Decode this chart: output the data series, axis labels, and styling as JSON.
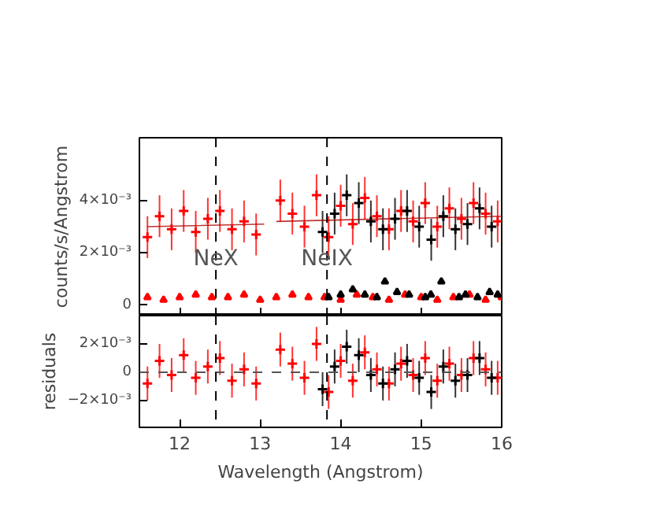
{
  "chart_data": [
    {
      "type": "scatter",
      "ylabel": "counts/s/Angstrom",
      "xlim": [
        11.5,
        16
      ],
      "ylim": [
        -0.0004,
        0.0064
      ],
      "xticks": [
        12,
        13,
        14,
        15,
        16
      ],
      "yticks": [
        {
          "value": 0,
          "label": "0"
        },
        {
          "value": 0.002,
          "label": "2×10⁻³"
        },
        {
          "value": 0.004,
          "label": "4×10⁻³"
        }
      ],
      "tick_labels": "y",
      "grid": false,
      "marker": "cross",
      "annotations": [
        {
          "text": "NeX",
          "x": 12.45,
          "y": 0.0013
        },
        {
          "text": "NeIX",
          "x": 13.83,
          "y": 0.0013
        }
      ],
      "ref_lines": [
        {
          "axis": "x",
          "value": 12.45,
          "label": null,
          "color": "#000000",
          "line_style": "dashed"
        },
        {
          "axis": "x",
          "value": 13.83,
          "label": null,
          "color": "#000000",
          "line_style": "dashed"
        }
      ],
      "series": [
        {
          "color": "#ff0000",
          "x": [
            11.6,
            11.75,
            11.9,
            12.05,
            12.2,
            12.35,
            12.5,
            12.65,
            12.8,
            12.95,
            13.25,
            13.4,
            13.55,
            13.7,
            13.85,
            14.0,
            14.15,
            14.3,
            14.45,
            14.6,
            14.75,
            14.9,
            15.05,
            15.2,
            15.35,
            15.5,
            15.65,
            15.8,
            15.95
          ],
          "values": [
            0.0026,
            0.0034,
            0.0029,
            0.0036,
            0.0028,
            0.0033,
            0.0036,
            0.0029,
            0.0032,
            0.0027,
            0.004,
            0.0035,
            0.003,
            0.0042,
            0.0026,
            0.0038,
            0.0031,
            0.0041,
            0.0034,
            0.0029,
            0.0036,
            0.0032,
            0.0039,
            0.003,
            0.0037,
            0.0033,
            0.0039,
            0.0035,
            0.0032
          ],
          "errors": [
            0.0008,
            0.0008,
            0.0008,
            0.0008,
            0.0008,
            0.0008,
            0.0008,
            0.0008,
            0.0008,
            0.0008,
            0.0008,
            0.0008,
            0.0008,
            0.0008,
            0.0008,
            0.0008,
            0.0008,
            0.0008,
            0.0008,
            0.0008,
            0.0008,
            0.0008,
            0.0008,
            0.0008,
            0.0008,
            0.0008,
            0.0008,
            0.0008,
            0.0008
          ]
        },
        {
          "color": "#000000",
          "x": [
            13.775,
            13.925,
            14.075,
            14.225,
            14.375,
            14.525,
            14.675,
            14.825,
            14.975,
            15.125,
            15.275,
            15.425,
            15.575,
            15.725,
            15.875
          ],
          "values": [
            0.0028,
            0.0035,
            0.0042,
            0.0039,
            0.0032,
            0.0029,
            0.0033,
            0.0036,
            0.003,
            0.0025,
            0.0034,
            0.0029,
            0.0031,
            0.0037,
            0.003
          ],
          "errors": [
            0.0008,
            0.0008,
            0.0008,
            0.0008,
            0.0008,
            0.0008,
            0.0008,
            0.0008,
            0.0008,
            0.0008,
            0.0008,
            0.0008,
            0.0008,
            0.0008,
            0.0008
          ]
        },
        {
          "type": "line",
          "color": "#b00000",
          "marker": "none",
          "x": [
            11.6,
            13.05,
            13.12,
            13.2,
            16
          ],
          "values": [
            0.003,
            0.0031,
            null,
            0.0032,
            0.0034
          ]
        },
        {
          "color": "#ff0000",
          "marker": "triangle",
          "x": [
            11.6,
            11.8,
            12.0,
            12.2,
            12.4,
            12.6,
            12.8,
            13.0,
            13.2,
            13.4,
            13.6,
            13.8,
            14.0,
            14.2,
            14.4,
            14.6,
            14.8,
            15.0,
            15.2,
            15.4,
            15.6,
            15.8,
            16.0
          ],
          "values": [
            0.0003,
            0.0002,
            0.0003,
            0.0004,
            0.0003,
            0.0003,
            0.0004,
            0.0002,
            0.0003,
            0.0004,
            0.0003,
            0.0003,
            0.0002,
            0.0004,
            0.0003,
            0.0002,
            0.0004,
            0.0003,
            0.0002,
            0.0003,
            0.0004,
            0.0002,
            0.0003
          ]
        },
        {
          "color": "#000000",
          "marker": "triangle",
          "x": [
            13.85,
            14.0,
            14.15,
            14.3,
            14.45,
            14.55,
            14.7,
            14.85,
            15.05,
            15.12,
            15.25,
            15.47,
            15.55,
            15.7,
            15.85,
            15.95
          ],
          "values": [
            0.0003,
            0.0004,
            0.0006,
            0.0004,
            0.0003,
            0.0009,
            0.0005,
            0.0004,
            0.0003,
            0.0004,
            0.0009,
            0.0003,
            0.0004,
            0.0003,
            0.0005,
            0.0004
          ]
        }
      ]
    },
    {
      "type": "scatter",
      "xlabel": "Wavelength (Angstrom)",
      "ylabel": "residuals",
      "xlim": [
        11.5,
        16
      ],
      "ylim": [
        -0.0039,
        0.004
      ],
      "xticks": [
        12,
        13,
        14,
        15,
        16
      ],
      "yticks": [
        {
          "value": -0.002,
          "label": "−2×10⁻³"
        },
        {
          "value": 0,
          "label": "0"
        },
        {
          "value": 0.002,
          "label": "2×10⁻³"
        }
      ],
      "grid": false,
      "marker": "cross",
      "ref_lines": [
        {
          "axis": "y",
          "value": 0,
          "label": null,
          "color": "#555555",
          "line_style": "dashed"
        },
        {
          "axis": "x",
          "value": 12.45,
          "label": null,
          "color": "#000000",
          "line_style": "dashed"
        },
        {
          "axis": "x",
          "value": 13.83,
          "label": null,
          "color": "#000000",
          "line_style": "dashed"
        }
      ],
      "series": [
        {
          "color": "#ff0000",
          "x": [
            11.6,
            11.75,
            11.9,
            12.05,
            12.2,
            12.35,
            12.5,
            12.65,
            12.8,
            12.95,
            13.25,
            13.4,
            13.55,
            13.7,
            13.85,
            14.0,
            14.15,
            14.3,
            14.45,
            14.6,
            14.75,
            14.9,
            15.05,
            15.2,
            15.35,
            15.5,
            15.65,
            15.8,
            15.95
          ],
          "values": [
            -0.0008,
            0.0008,
            -0.0002,
            0.0012,
            -0.0004,
            0.0004,
            0.001,
            -0.0006,
            0.0002,
            -0.0008,
            0.0016,
            0.0006,
            -0.0004,
            0.002,
            -0.0014,
            0.0008,
            -0.0006,
            0.0014,
            0.0002,
            -0.0008,
            0.0006,
            -0.0002,
            0.001,
            -0.0006,
            0.0006,
            -0.0002,
            0.001,
            0.0002,
            -0.0004
          ],
          "errors": [
            0.0012,
            0.0012,
            0.0012,
            0.0012,
            0.0012,
            0.0012,
            0.0012,
            0.0012,
            0.0012,
            0.0012,
            0.0012,
            0.0012,
            0.0012,
            0.0012,
            0.0012,
            0.0012,
            0.0012,
            0.0012,
            0.0012,
            0.0012,
            0.0012,
            0.0012,
            0.0012,
            0.0012,
            0.0012,
            0.0012,
            0.0012,
            0.0012,
            0.0012
          ]
        },
        {
          "color": "#000000",
          "x": [
            13.775,
            13.925,
            14.075,
            14.225,
            14.375,
            14.525,
            14.675,
            14.825,
            14.975,
            15.125,
            15.275,
            15.425,
            15.575,
            15.725,
            15.875
          ],
          "values": [
            -0.0012,
            0.0004,
            0.0018,
            0.0012,
            -0.0002,
            -0.0008,
            0.0002,
            0.0008,
            -0.0004,
            -0.0014,
            0.0004,
            -0.0006,
            -0.0002,
            0.001,
            -0.0004
          ],
          "errors": [
            0.0012,
            0.0012,
            0.0012,
            0.0012,
            0.0012,
            0.0012,
            0.0012,
            0.0012,
            0.0012,
            0.0012,
            0.0012,
            0.0012,
            0.0012,
            0.0012,
            0.0012
          ]
        }
      ]
    }
  ]
}
